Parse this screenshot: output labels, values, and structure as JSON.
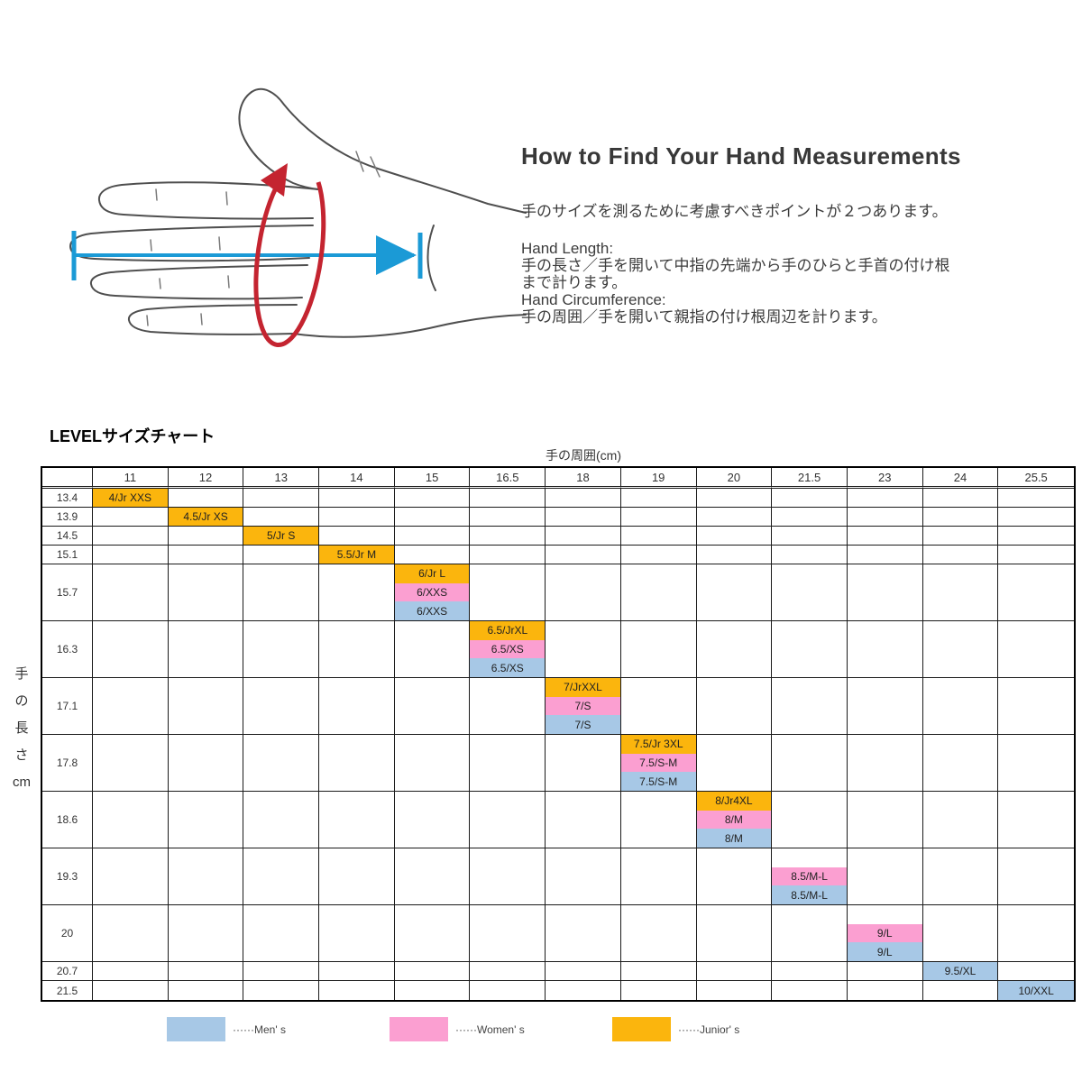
{
  "hand_guide": {
    "title": "How to Find Your Hand Measurements",
    "intro": "手のサイズを測るために考慮すべきポイントが２つあります。",
    "length_label": "Hand Length:",
    "length_desc_1": "手の長さ／手を開いて中指の先端から手のひらと手首の付け根",
    "length_desc_2": "まで計ります。",
    "circumference_label": "Hand Circumference:",
    "circumference_desc": "手の周囲／手を開いて親指の付け根周辺を計ります。",
    "arrow_colors": {
      "length_arrow": "#1b9ad6",
      "circumference_arrow": "#c42430"
    }
  },
  "chart_data": {
    "type": "table",
    "title": "LEVELサイズチャート",
    "col_axis_label": "手の周囲(cm)",
    "row_axis_label": "手の長さcm",
    "row_axis_chars": [
      "手",
      "の",
      "長",
      "さ",
      "cm"
    ],
    "columns": [
      "11",
      "12",
      "13",
      "14",
      "15",
      "16.5",
      "18",
      "19",
      "20",
      "21.5",
      "23",
      "24",
      "25.5"
    ],
    "rows": [
      {
        "length": "13.4",
        "column": "11",
        "cells": [
          {
            "label": "4/Jr XXS",
            "category": "junior"
          }
        ]
      },
      {
        "length": "13.9",
        "column": "12",
        "cells": [
          {
            "label": "4.5/Jr XS",
            "category": "junior"
          }
        ]
      },
      {
        "length": "14.5",
        "column": "13",
        "cells": [
          {
            "label": "5/Jr S",
            "category": "junior"
          }
        ]
      },
      {
        "length": "15.1",
        "column": "14",
        "cells": [
          {
            "label": "5.5/Jr M",
            "category": "junior"
          }
        ]
      },
      {
        "length": "15.7",
        "column": "15",
        "cells": [
          {
            "label": "6/Jr L",
            "category": "junior"
          },
          {
            "label": "6/XXS",
            "category": "women"
          },
          {
            "label": "6/XXS",
            "category": "men"
          }
        ]
      },
      {
        "length": "16.3",
        "column": "16.5",
        "cells": [
          {
            "label": "6.5/JrXL",
            "category": "junior"
          },
          {
            "label": "6.5/XS",
            "category": "women"
          },
          {
            "label": "6.5/XS",
            "category": "men"
          }
        ]
      },
      {
        "length": "17.1",
        "column": "18",
        "cells": [
          {
            "label": "7/JrXXL",
            "category": "junior"
          },
          {
            "label": "7/S",
            "category": "women"
          },
          {
            "label": "7/S",
            "category": "men"
          }
        ]
      },
      {
        "length": "17.8",
        "column": "19",
        "cells": [
          {
            "label": "7.5/Jr 3XL",
            "category": "junior"
          },
          {
            "label": "7.5/S-M",
            "category": "women"
          },
          {
            "label": "7.5/S-M",
            "category": "men"
          }
        ]
      },
      {
        "length": "18.6",
        "column": "20",
        "cells": [
          {
            "label": "8/Jr4XL",
            "category": "junior"
          },
          {
            "label": "8/M",
            "category": "women"
          },
          {
            "label": "8/M",
            "category": "men"
          }
        ]
      },
      {
        "length": "19.3",
        "column": "21.5",
        "cells": [
          {
            "label": "",
            "category": "empty"
          },
          {
            "label": "8.5/M-L",
            "category": "women"
          },
          {
            "label": "8.5/M-L",
            "category": "men"
          }
        ]
      },
      {
        "length": "20",
        "column": "23",
        "cells": [
          {
            "label": "",
            "category": "empty"
          },
          {
            "label": "9/L",
            "category": "women"
          },
          {
            "label": "9/L",
            "category": "men"
          }
        ]
      },
      {
        "length": "20.7",
        "column": "24",
        "cells": [
          {
            "label": "9.5/XL",
            "category": "men"
          }
        ]
      },
      {
        "length": "21.5",
        "column": "25.5",
        "cells": [
          {
            "label": "10/XXL",
            "category": "men"
          }
        ]
      }
    ],
    "legend": [
      {
        "label": "······Men' s",
        "category": "men"
      },
      {
        "label": "······Women' s",
        "category": "women"
      },
      {
        "label": "······Junior' s",
        "category": "junior"
      }
    ],
    "colors": {
      "men": "#a7c8e6",
      "women": "#fb9fd1",
      "junior": "#fbb50d",
      "grid": "#1a1a1a"
    }
  }
}
